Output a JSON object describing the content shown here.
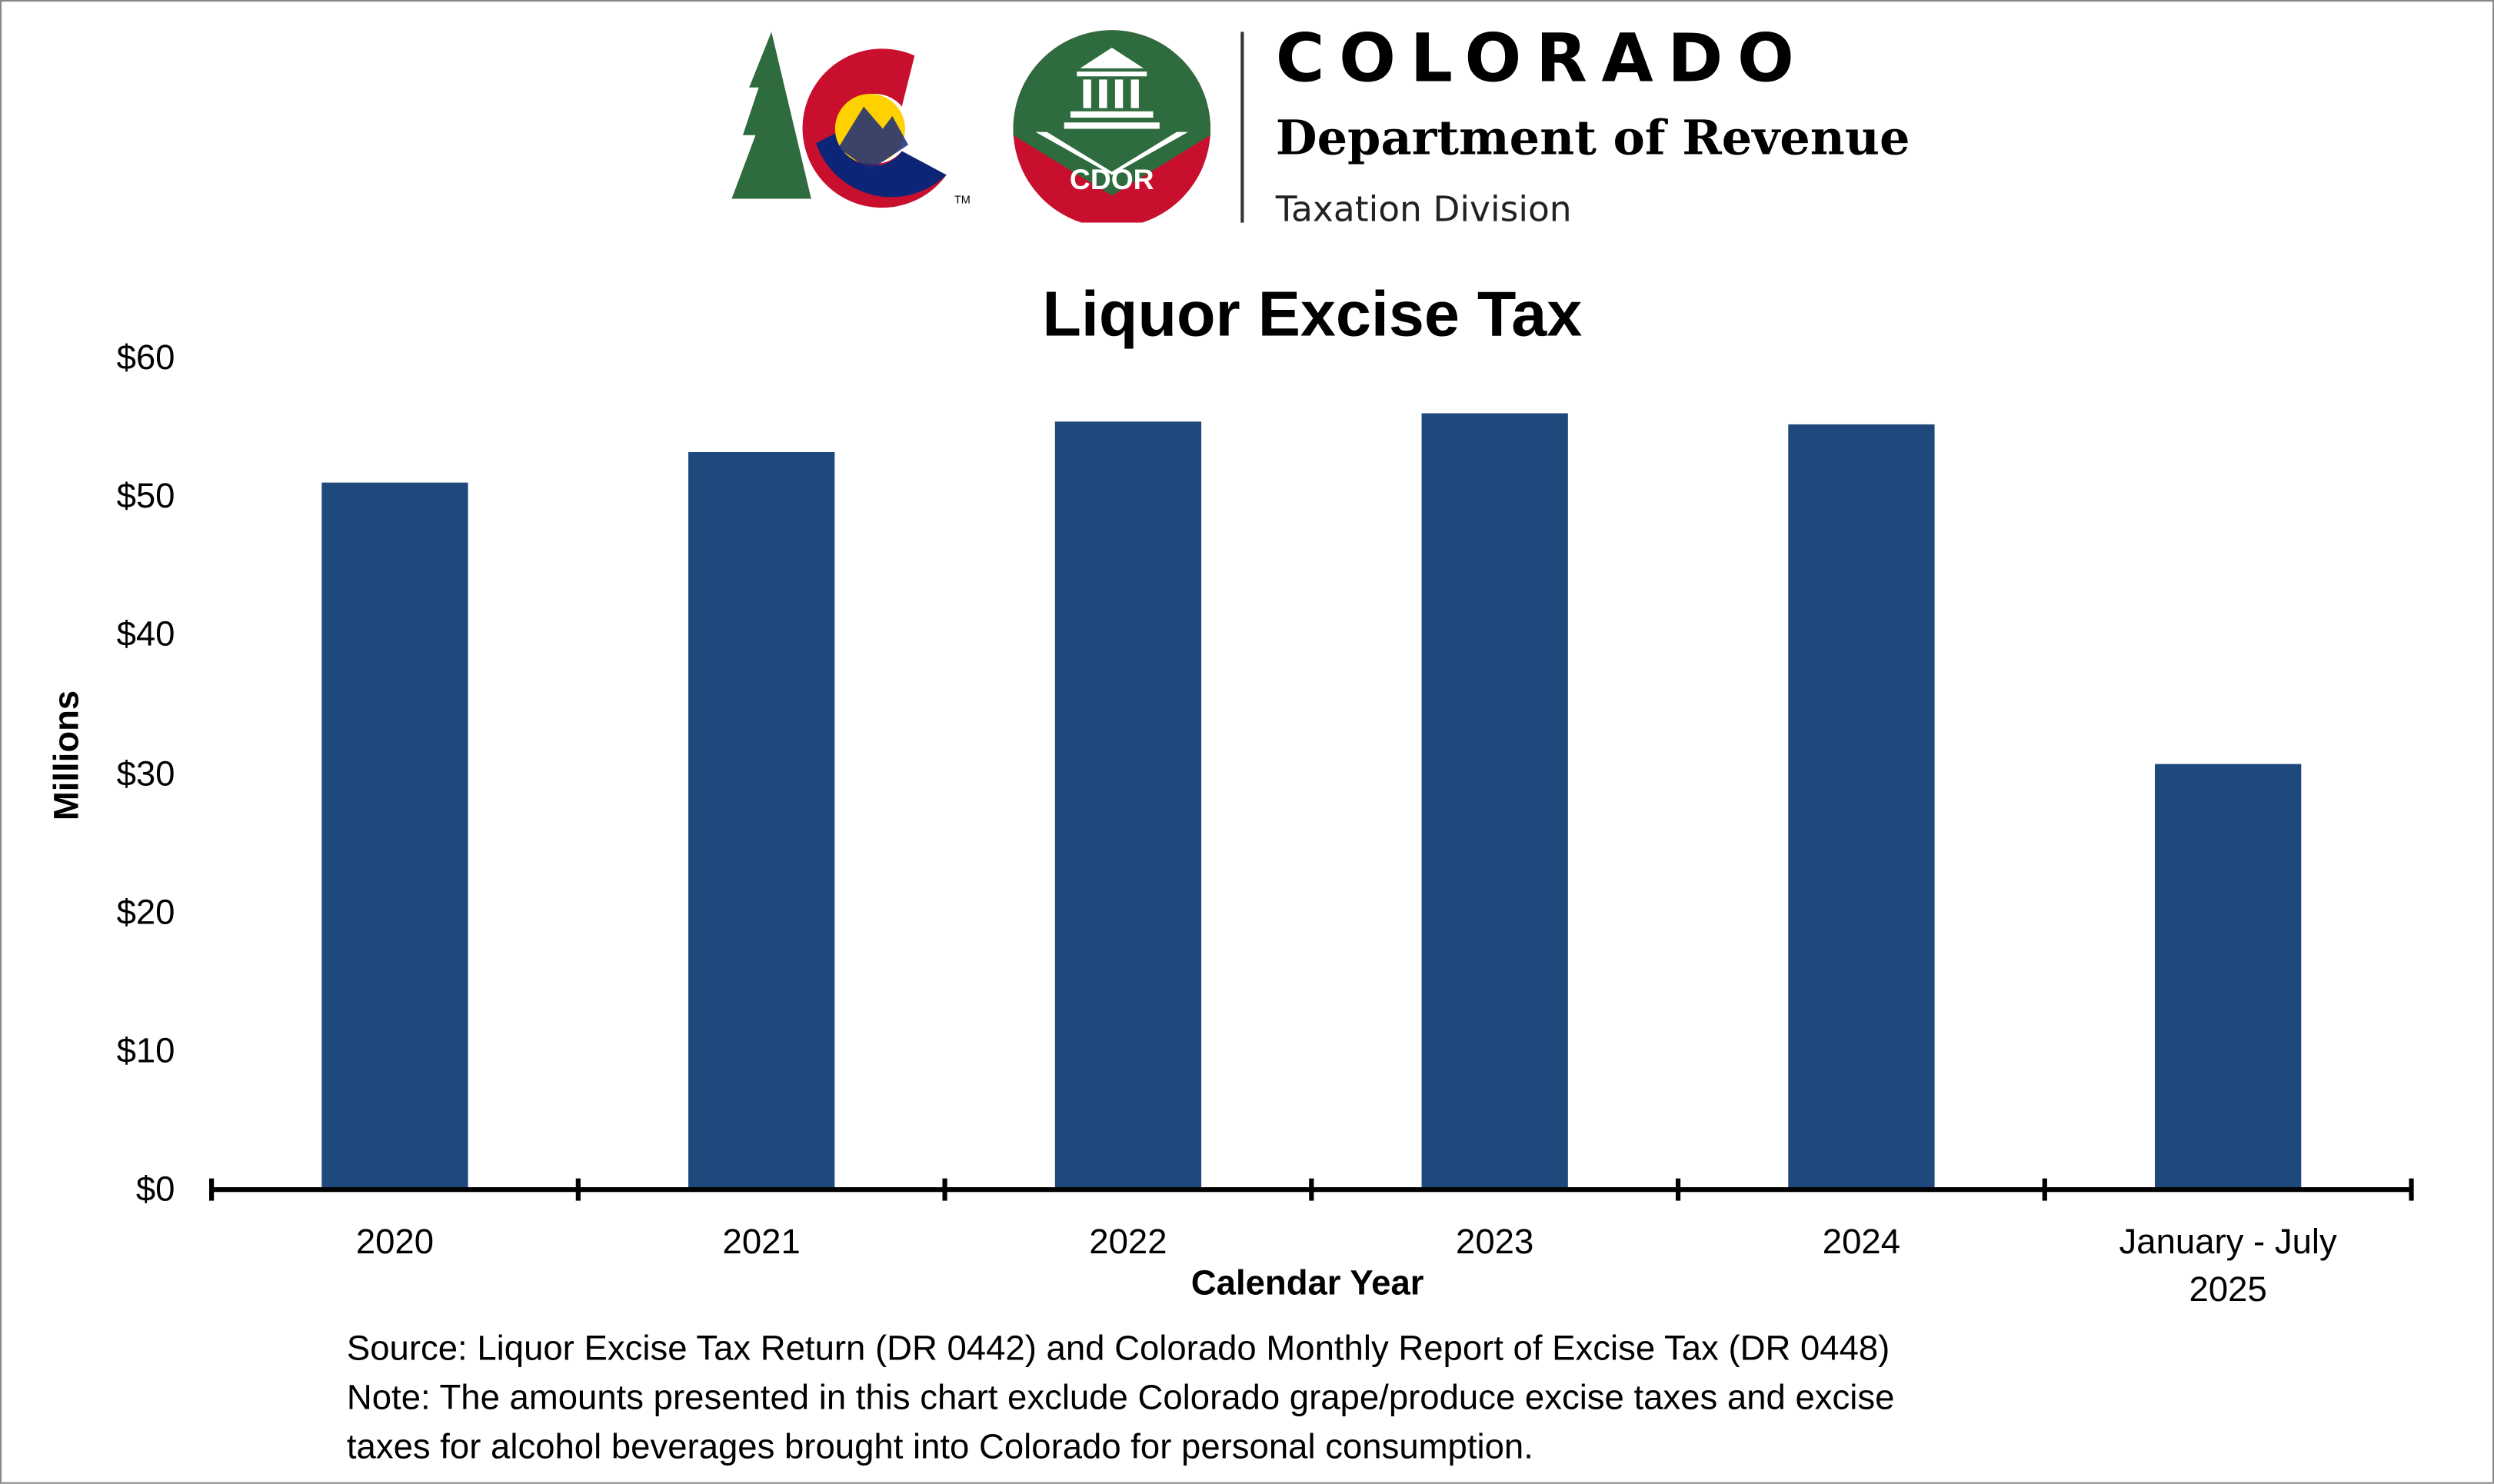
{
  "header": {
    "org_name": "COLORADO",
    "department": "Department of Revenue",
    "division": "Taxation Division",
    "logo_badge_text": "CDOR",
    "logo_trademark": "TM"
  },
  "chart_data": {
    "type": "bar",
    "title": "Liquor Excise Tax",
    "xlabel": "Calendar Year",
    "ylabel": "Millions",
    "categories": [
      "2020",
      "2021",
      "2022",
      "2023",
      "2024",
      "January - July 2025"
    ],
    "category_lines": [
      [
        "2020"
      ],
      [
        "2021"
      ],
      [
        "2022"
      ],
      [
        "2023"
      ],
      [
        "2024"
      ],
      [
        "January - July",
        "2025"
      ]
    ],
    "values": [
      51.0,
      53.2,
      55.4,
      56.0,
      55.2,
      30.7
    ],
    "ylim": [
      0,
      60
    ],
    "yticks": [
      0,
      10,
      20,
      30,
      40,
      50,
      60
    ],
    "ytick_labels": [
      "$0",
      "$10",
      "$20",
      "$30",
      "$40",
      "$50",
      "$60"
    ],
    "grid": false,
    "legend": "none",
    "bar_color": "#1F497D"
  },
  "notes": {
    "source": "Source: Liquor Excise Tax Return (DR 0442) and Colorado Monthly Report of Excise Tax (DR 0448)",
    "note_line1": "Note: The amounts presented in this chart exclude Colorado grape/produce excise taxes and excise",
    "note_line2": "taxes for alcohol beverages brought into Colorado for personal consumption."
  }
}
